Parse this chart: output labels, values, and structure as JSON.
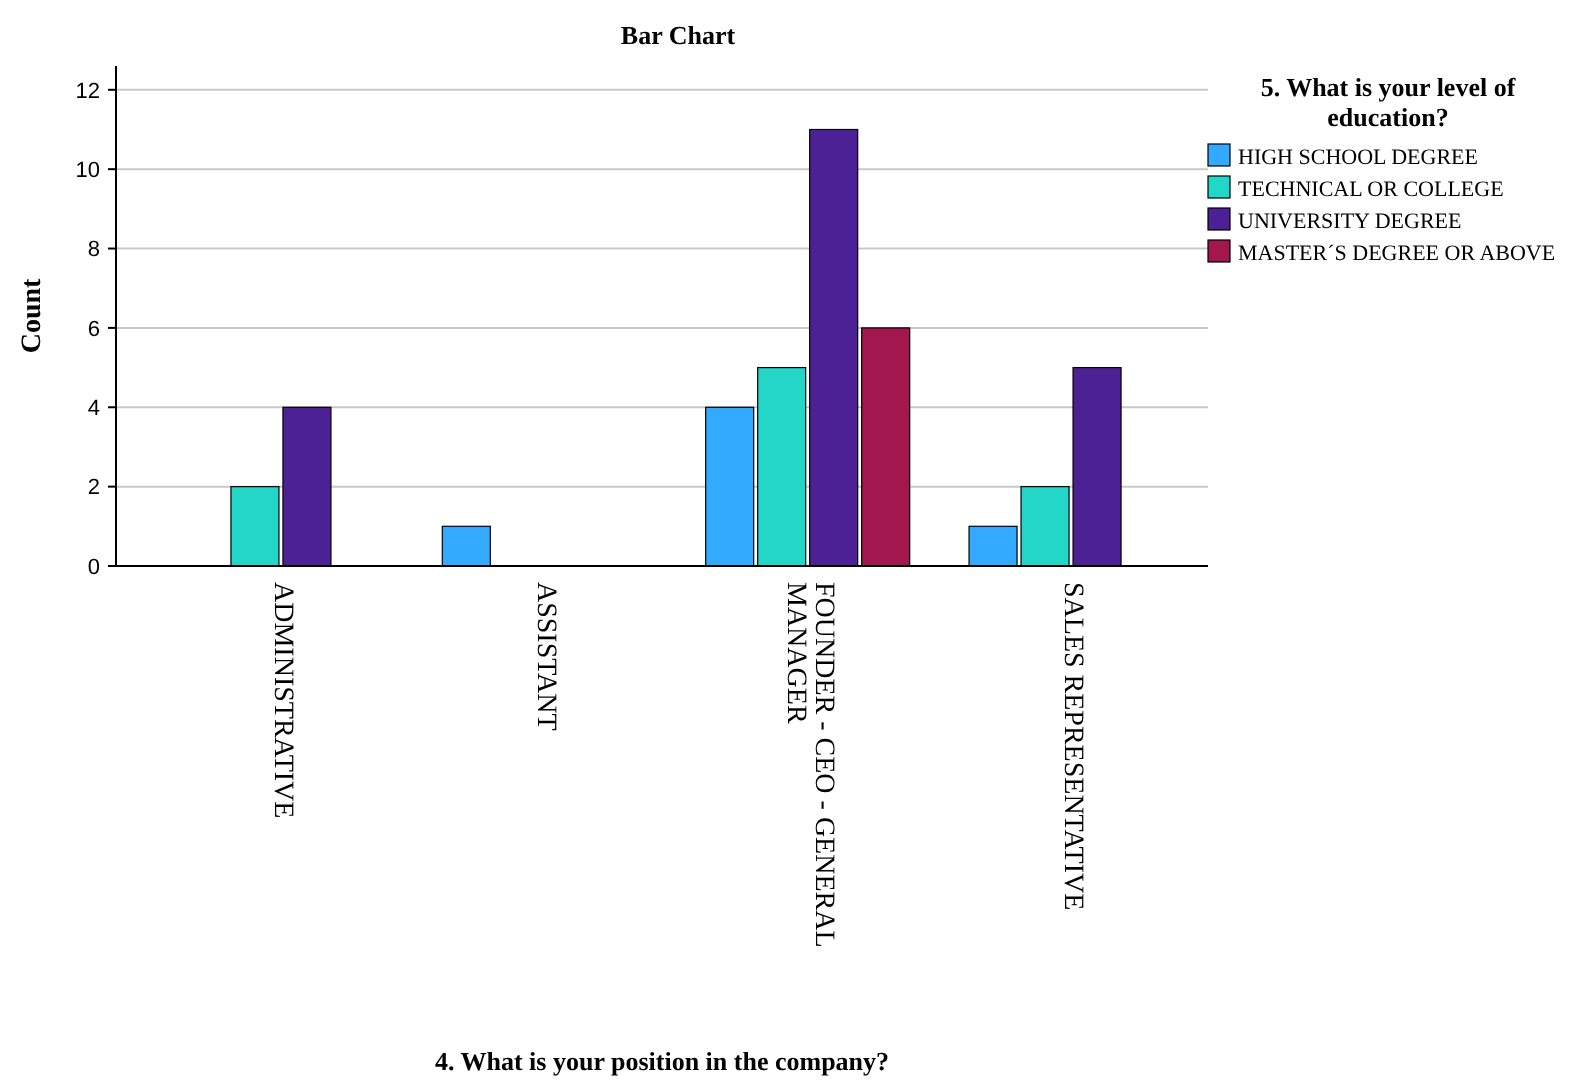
{
  "chart_data": {
    "type": "bar",
    "title": "Bar Chart",
    "xlabel": "4. What is your position in the company?",
    "ylabel": "Count",
    "legend_title": "5. What is your level of education?",
    "categories": [
      "ADMINISTRATIVE",
      "ASSISTANT",
      "FOUNDER - CEO - GENERAL MANAGER",
      "SALES REPRESENTATIVE"
    ],
    "series": [
      {
        "name": "HIGH SCHOOL DEGREE",
        "color": "#33aaff",
        "values": [
          null,
          1,
          4,
          1
        ]
      },
      {
        "name": "TECHNICAL OR COLLEGE",
        "color": "#22d6c8",
        "values": [
          2,
          null,
          5,
          2
        ]
      },
      {
        "name": "UNIVERSITY DEGREE",
        "color": "#4d2196",
        "values": [
          4,
          null,
          11,
          5
        ]
      },
      {
        "name": "MASTER´S DEGREE OR ABOVE",
        "color": "#a3174f",
        "values": [
          null,
          null,
          6,
          null
        ]
      }
    ],
    "ylim": [
      0,
      12.6
    ],
    "yticks": [
      0,
      2,
      4,
      6,
      8,
      10,
      12
    ],
    "grid": "y",
    "legend": "top right"
  }
}
